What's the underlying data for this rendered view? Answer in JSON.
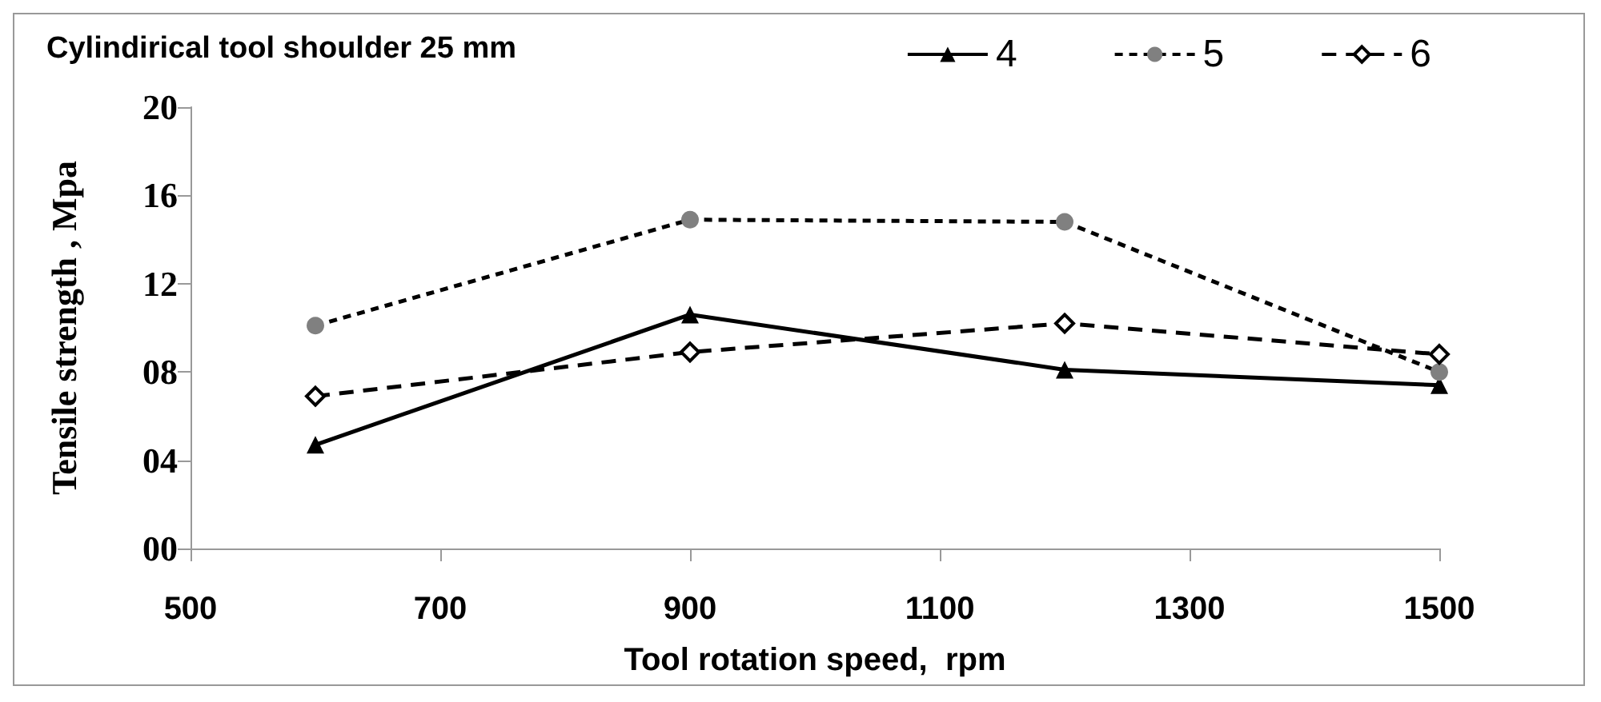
{
  "chart_data": {
    "type": "line",
    "legend_title": "Cylindirical tool shoulder 25 mm",
    "xlabel": "Tool rotation speed,  rpm",
    "ylabel": "Tensile strength , Mpa",
    "x": [
      600,
      900,
      1200,
      1500
    ],
    "series": [
      {
        "name": "4",
        "color": "#000000",
        "marker": "triangle",
        "line_style": "solid",
        "values": [
          4.7,
          10.6,
          8.1,
          7.4
        ]
      },
      {
        "name": "5",
        "color": "#808080",
        "marker": "circle",
        "line_style": "dotted",
        "values": [
          10.1,
          14.9,
          14.8,
          8.0
        ]
      },
      {
        "name": "6",
        "color": "#000000",
        "marker": "diamond",
        "line_style": "dashed",
        "values": [
          6.9,
          8.9,
          10.2,
          8.8
        ]
      }
    ],
    "xlim": [
      500,
      1500
    ],
    "xticks": [
      500,
      700,
      900,
      1100,
      1300,
      1500
    ],
    "ylim": [
      0,
      20
    ],
    "yticks": [
      {
        "value": 0,
        "label": "00"
      },
      {
        "value": 4,
        "label": "04"
      },
      {
        "value": 8,
        "label": "08"
      },
      {
        "value": 12,
        "label": "12"
      },
      {
        "value": 16,
        "label": "16"
      },
      {
        "value": 20,
        "label": "20"
      }
    ],
    "grid": false,
    "legend": "top right"
  }
}
